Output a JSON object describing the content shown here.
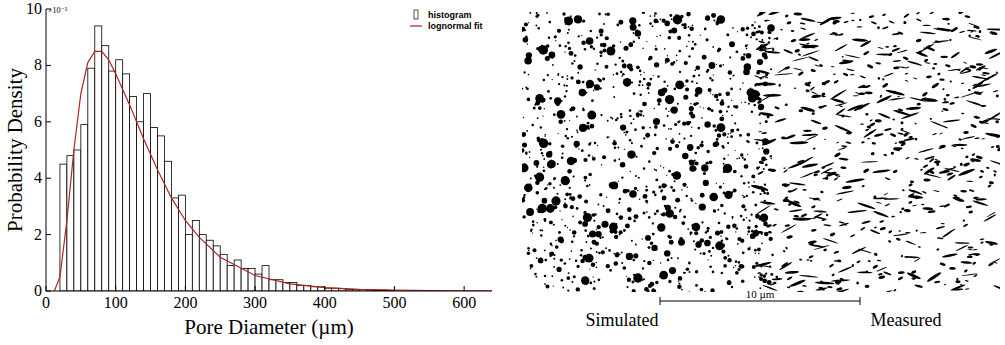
{
  "chart_data": {
    "type": "histogram",
    "x_label": "Pore Diameter (µm)",
    "y_label": "Probability Density",
    "annotations": [
      "×10⁻³"
    ],
    "xlim": [
      0,
      640
    ],
    "ylim": [
      0,
      10
    ],
    "xticks": [
      0,
      100,
      200,
      300,
      400,
      500,
      600
    ],
    "yticks": [
      0,
      2,
      4,
      6,
      8,
      10
    ],
    "legend": "top-right",
    "bins": [
      20,
      30,
      40,
      50,
      60,
      70,
      80,
      90,
      100,
      110,
      120,
      130,
      140,
      150,
      160,
      170,
      180,
      190,
      200,
      210,
      220,
      230,
      240,
      250,
      260,
      270,
      280,
      290,
      300,
      310,
      320,
      330,
      340,
      350,
      360,
      370,
      380,
      390,
      400,
      410,
      420,
      430,
      440,
      450,
      460,
      470,
      480,
      490,
      500
    ],
    "series": [
      {
        "name": "histogram",
        "type": "bar",
        "color": "#ffffff",
        "values": [
          4.5,
          4.8,
          5.0,
          5.9,
          7.9,
          9.4,
          8.7,
          7.8,
          8.2,
          7.7,
          6.9,
          6.0,
          7.0,
          5.8,
          5.5,
          4.6,
          3.3,
          3.4,
          2.0,
          2.5,
          2.0,
          1.8,
          1.6,
          1.3,
          0.9,
          1.1,
          0.8,
          0.8,
          0.6,
          0.9,
          0.4,
          0.4,
          0.3,
          0.3,
          0.2,
          0.2,
          0.15,
          0.15,
          0.1,
          0.1,
          0.08,
          0.06,
          0.05,
          0.05,
          0.04,
          0.03,
          0.03,
          0.02
        ]
      },
      {
        "name": "lognormal fit",
        "type": "line",
        "color": "#b22222",
        "x": [
          12,
          20,
          30,
          40,
          50,
          60,
          70,
          80,
          90,
          100,
          120,
          140,
          160,
          180,
          200,
          220,
          250,
          300,
          350,
          400,
          450,
          500,
          550,
          600,
          640
        ],
        "values": [
          0,
          0.5,
          2.5,
          5.0,
          7.0,
          8.1,
          8.5,
          8.5,
          8.2,
          7.7,
          6.6,
          5.4,
          4.3,
          3.3,
          2.5,
          1.9,
          1.2,
          0.55,
          0.25,
          0.12,
          0.06,
          0.03,
          0.015,
          0.008,
          0.005
        ]
      }
    ]
  },
  "micrograph": {
    "left_label": "Simulated",
    "right_label": "Measured",
    "scale_bar": "10 µm"
  }
}
